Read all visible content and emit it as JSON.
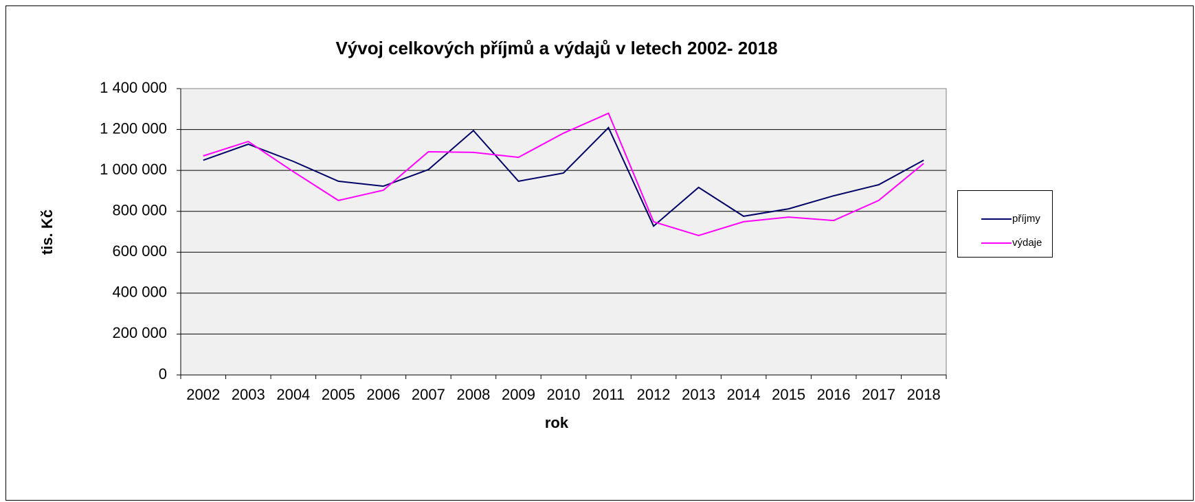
{
  "chart_data": {
    "type": "line",
    "title": "Vývoj celkových příjmů a výdajů v letech 2002- 2018",
    "x_label": "rok",
    "y_label": "tis. Kč",
    "categories": [
      "2002",
      "2003",
      "2004",
      "2005",
      "2006",
      "2007",
      "2008",
      "2009",
      "2010",
      "2011",
      "2012",
      "2013",
      "2014",
      "2015",
      "2016",
      "2017",
      "2018"
    ],
    "series": [
      {
        "name": "příjmy",
        "color": "#000066",
        "values": [
          1050000,
          1128000,
          1044000,
          947000,
          923000,
          1004000,
          1195000,
          947000,
          987000,
          1209000,
          728000,
          917000,
          776000,
          812000,
          876000,
          930000,
          1050000
        ]
      },
      {
        "name": "výdaje",
        "color": "#ff00ff",
        "values": [
          1071000,
          1141000,
          994000,
          853000,
          903000,
          1091000,
          1088000,
          1064000,
          1182000,
          1279000,
          749000,
          682000,
          749000,
          772000,
          755000,
          853000,
          1034000
        ]
      }
    ],
    "ylim": [
      0,
      1400000
    ],
    "yticks": [
      0,
      {
        "value": 200000,
        "label": "200 000"
      },
      {
        "value": 400000,
        "label": "400 000"
      },
      {
        "value": 600000,
        "label": "600 000"
      },
      {
        "value": 800000,
        "label": "800 000"
      },
      {
        "value": 1000000,
        "label": "1 000 000"
      },
      {
        "value": 1200000,
        "label": "1 200 000"
      },
      {
        "value": 1400000,
        "label": "1 400 000"
      }
    ],
    "grid": true,
    "legend": "right"
  }
}
